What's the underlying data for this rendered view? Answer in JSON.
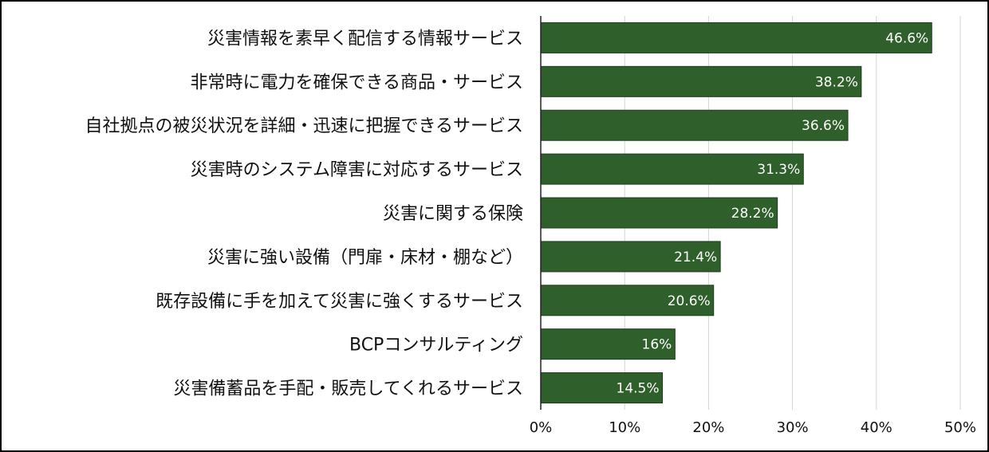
{
  "chart_data": {
    "type": "bar",
    "orientation": "horizontal",
    "categories": [
      "災害情報を素早く配信する情報サービス",
      "非常時に電力を確保できる商品・サービス",
      "自社拠点の被災状況を詳細・迅速に把握できるサービス",
      "災害時のシステム障害に対応するサービス",
      "災害に関する保険",
      "災害に強い設備（門扉・床材・棚など）",
      "既存設備に手を加えて災害に強くするサービス",
      "BCPコンサルティング",
      "災害備蓄品を手配・販売してくれるサービス"
    ],
    "values": [
      46.6,
      38.2,
      36.6,
      31.3,
      28.2,
      21.4,
      20.6,
      16,
      14.5
    ],
    "value_labels": [
      "46.6%",
      "38.2%",
      "36.6%",
      "31.3%",
      "28.2%",
      "21.4%",
      "20.6%",
      "16%",
      "14.5%"
    ],
    "xlim": [
      0,
      50
    ],
    "xticks": [
      "0%",
      "10%",
      "20%",
      "30%",
      "40%",
      "50%"
    ],
    "grid": "vertical",
    "bar_color": "#2f5f2b",
    "grid_color": "#d4d4d4",
    "title": "",
    "xlabel": "",
    "ylabel": ""
  }
}
